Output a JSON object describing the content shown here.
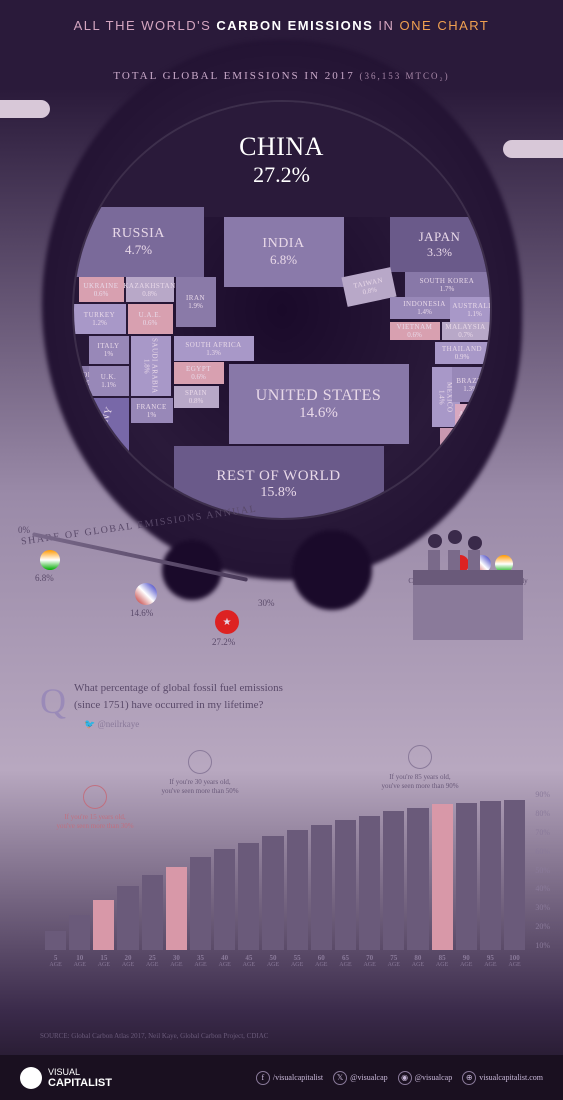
{
  "title": {
    "pre": "ALL THE WORLD'S ",
    "bold": "CARBON EMISSIONS",
    "post": " IN ",
    "orange": "ONE CHART"
  },
  "arc": {
    "main": "TOTAL GLOBAL EMISSIONS IN 2017",
    "sub": "(36,153 MTCO₂)"
  },
  "regions": {
    "china": {
      "name": "CHINA",
      "pct": "27.2%",
      "color": "#2a1a3a"
    },
    "russia": {
      "name": "RUSSIA",
      "pct": "4.7%",
      "color": "#7a6a9a"
    },
    "india": {
      "name": "INDIA",
      "pct": "6.8%",
      "color": "#8a7aaa"
    },
    "japan": {
      "name": "JAPAN",
      "pct": "3.3%",
      "color": "#6a5a8a"
    },
    "ukraine": {
      "name": "UKRAINE",
      "pct": "0.6%",
      "color": "#d8a0b0"
    },
    "kazakh": {
      "name": "KAZAKHSTAN",
      "pct": "0.8%",
      "color": "#b8a8c8"
    },
    "iran": {
      "name": "IRAN",
      "pct": "1.9%",
      "color": "#8a7aa8"
    },
    "turkey": {
      "name": "TURKEY",
      "pct": "1.2%",
      "color": "#a898c8"
    },
    "uae": {
      "name": "U.A.E.",
      "pct": "0.6%",
      "color": "#d8a0b0"
    },
    "taiwan": {
      "name": "TAIWAN",
      "pct": "0.8%",
      "color": "#b8a8c8"
    },
    "skorea": {
      "name": "SOUTH KOREA",
      "pct": "1.7%",
      "color": "#8878a8"
    },
    "indonesia": {
      "name": "INDONESIA",
      "pct": "1.4%",
      "color": "#9888b8"
    },
    "australia": {
      "name": "AUSTRALIA",
      "pct": "1.1%",
      "color": "#a898c8"
    },
    "italy": {
      "name": "ITALY",
      "pct": "1%",
      "color": "#9888b8"
    },
    "saudi": {
      "name": "SAUDI ARABIA",
      "pct": "1.8%",
      "color": "#a898c8"
    },
    "poland": {
      "name": "POLAND",
      "pct": "0.9%",
      "color": "#8878a8"
    },
    "uk": {
      "name": "U.K.",
      "pct": "1.1%",
      "color": "#9888b8"
    },
    "safrica": {
      "name": "SOUTH AFRICA",
      "pct": "1.3%",
      "color": "#a898c8"
    },
    "vietnam": {
      "name": "VIETNAM",
      "pct": "0.6%",
      "color": "#d8a0b0"
    },
    "malaysia": {
      "name": "MALAYSIA",
      "pct": "0.7%",
      "color": "#b8a8c8"
    },
    "thailand": {
      "name": "THAILAND",
      "pct": "0.9%",
      "color": "#a898c8"
    },
    "egypt": {
      "name": "EGYPT",
      "pct": "0.6%",
      "color": "#d8a0b0"
    },
    "spain": {
      "name": "SPAIN",
      "pct": "0.8%",
      "color": "#b8a8c8"
    },
    "france": {
      "name": "FRANCE",
      "pct": "1%",
      "color": "#9888b8"
    },
    "us": {
      "name": "UNITED STATES",
      "pct": "14.6%",
      "color": "#8878a8"
    },
    "mexico": {
      "name": "MEXICO",
      "pct": "1.4%",
      "color": "#a898c8"
    },
    "brazil": {
      "name": "BRAZIL",
      "pct": "1.3%",
      "color": "#9888b8"
    },
    "germany": {
      "name": "GERMANY",
      "pct": "2.2%",
      "color": "#7868a8"
    },
    "row": {
      "name": "REST OF WORLD",
      "pct": "15.8%",
      "color": "#6a5a8a"
    },
    "canada": {
      "name": "CANADA",
      "pct": "1.6%",
      "color": "#c898b0"
    },
    "argentina": {
      "name": "ARGEN TINA",
      "pct": "0.6%",
      "color": "#d8a8c0"
    }
  },
  "share": {
    "label": "SHARE OF GLOBAL EMISSIONS ANNUAL",
    "start": "0%",
    "end": "30%",
    "markers": {
      "india": "6.8%",
      "us": "14.6%",
      "china": "27.2%"
    }
  },
  "flags_caption": "China, U.S., and India account for roughly half of all global emissions in 2017.",
  "question": {
    "q": "Q",
    "text": "What percentage of global fossil fuel emissions (since 1751) have occurred in my lifetime?",
    "handle": "@neilrkaye"
  },
  "barchart": {
    "type": "bar",
    "ages": [
      5,
      10,
      15,
      20,
      25,
      30,
      35,
      40,
      45,
      50,
      55,
      60,
      65,
      70,
      75,
      80,
      85,
      90,
      95,
      100
    ],
    "values": [
      12,
      22,
      31,
      40,
      47,
      52,
      58,
      63,
      67,
      71,
      75,
      78,
      81,
      84,
      87,
      89,
      91,
      92,
      93,
      94
    ],
    "highlight_idx": [
      2,
      5,
      16
    ],
    "yticks": [
      "10%",
      "20%",
      "30%",
      "40%",
      "50%",
      "60%",
      "70%",
      "80%",
      "90%"
    ],
    "bar_color": "#6a5a7a",
    "highlight_color": "#d898a8",
    "callouts": {
      "c1": "If you're 15 years old, you've seen more than 30%",
      "c2": "If you're 30 years old, you've seen more than 50%",
      "c3": "If you're 85 years old, you've seen more than 90%"
    },
    "xlabel": "AGE"
  },
  "source": "SOURCE: Global Carbon Atlas 2017, Neil Kaye, Global Carbon Project, CDIAC",
  "footer": {
    "brand_top": "VISUAL",
    "brand_bot": "CAPITALIST",
    "socials": [
      {
        "icon": "f",
        "handle": "/visualcapitalist"
      },
      {
        "icon": "𝕏",
        "handle": "@visualcap"
      },
      {
        "icon": "◉",
        "handle": "@visualcap"
      },
      {
        "icon": "⊕",
        "handle": "visualcapitalist.com"
      }
    ]
  }
}
